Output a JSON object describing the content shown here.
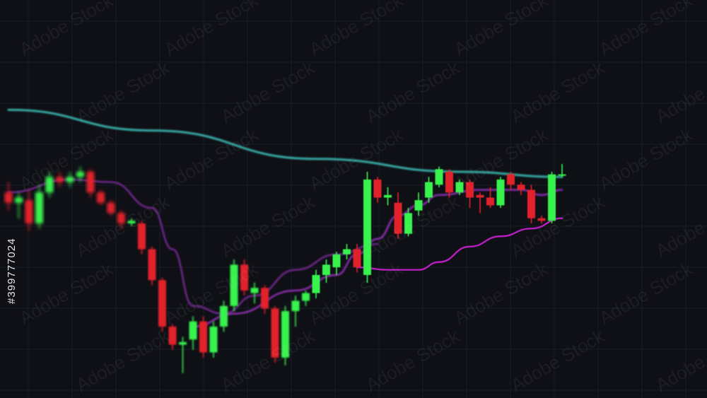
{
  "watermark": {
    "text": "Adobe Stock",
    "id": "#399777024"
  },
  "colors": {
    "background": "#0f1016",
    "bull": "#39f24e",
    "bear": "#e1202a",
    "ma_teal": "#3ab8b0",
    "ma_purple": "#7a2a9a",
    "ma_magenta": "#c020c8"
  },
  "chart_data": {
    "type": "candlestick",
    "title": "",
    "xlabel": "",
    "ylabel": "",
    "grid": true,
    "legend": "none",
    "ylim": [
      0,
      100
    ],
    "candles": [
      {
        "o": 72,
        "h": 76,
        "l": 65,
        "c": 68
      },
      {
        "o": 68,
        "h": 72,
        "l": 62,
        "c": 70
      },
      {
        "o": 69,
        "h": 73,
        "l": 57,
        "c": 60
      },
      {
        "o": 60,
        "h": 75,
        "l": 58,
        "c": 72
      },
      {
        "o": 72,
        "h": 80,
        "l": 70,
        "c": 78
      },
      {
        "o": 78,
        "h": 80,
        "l": 74,
        "c": 76
      },
      {
        "o": 76,
        "h": 80,
        "l": 74,
        "c": 78
      },
      {
        "o": 78,
        "h": 82,
        "l": 76,
        "c": 80
      },
      {
        "o": 80,
        "h": 81,
        "l": 70,
        "c": 72
      },
      {
        "o": 72,
        "h": 73,
        "l": 67,
        "c": 68
      },
      {
        "o": 68,
        "h": 69,
        "l": 63,
        "c": 64
      },
      {
        "o": 64,
        "h": 65,
        "l": 58,
        "c": 60
      },
      {
        "o": 60,
        "h": 62,
        "l": 59,
        "c": 61
      },
      {
        "o": 60,
        "h": 61,
        "l": 48,
        "c": 50
      },
      {
        "o": 50,
        "h": 51,
        "l": 36,
        "c": 38
      },
      {
        "o": 38,
        "h": 39,
        "l": 18,
        "c": 20
      },
      {
        "o": 20,
        "h": 21,
        "l": 11,
        "c": 13
      },
      {
        "o": 13,
        "h": 16,
        "l": 2,
        "c": 14
      },
      {
        "o": 15,
        "h": 24,
        "l": 11,
        "c": 22
      },
      {
        "o": 22,
        "h": 24,
        "l": 8,
        "c": 10
      },
      {
        "o": 10,
        "h": 22,
        "l": 8,
        "c": 20
      },
      {
        "o": 20,
        "h": 30,
        "l": 18,
        "c": 28
      },
      {
        "o": 28,
        "h": 46,
        "l": 26,
        "c": 44
      },
      {
        "o": 44,
        "h": 46,
        "l": 32,
        "c": 34
      },
      {
        "o": 33,
        "h": 37,
        "l": 29,
        "c": 35
      },
      {
        "o": 35,
        "h": 36,
        "l": 25,
        "c": 27
      },
      {
        "o": 27,
        "h": 28,
        "l": 6,
        "c": 8
      },
      {
        "o": 8,
        "h": 28,
        "l": 5,
        "c": 26
      },
      {
        "o": 26,
        "h": 32,
        "l": 20,
        "c": 30
      },
      {
        "o": 30,
        "h": 34,
        "l": 28,
        "c": 33
      },
      {
        "o": 33,
        "h": 42,
        "l": 31,
        "c": 40
      },
      {
        "o": 40,
        "h": 46,
        "l": 37,
        "c": 44
      },
      {
        "o": 43,
        "h": 49,
        "l": 40,
        "c": 48
      },
      {
        "o": 48,
        "h": 52,
        "l": 46,
        "c": 50
      },
      {
        "o": 50,
        "h": 52,
        "l": 41,
        "c": 43
      },
      {
        "o": 40,
        "h": 80,
        "l": 37,
        "c": 77
      },
      {
        "o": 77,
        "h": 78,
        "l": 68,
        "c": 70
      },
      {
        "o": 70,
        "h": 74,
        "l": 67,
        "c": 71
      },
      {
        "o": 68,
        "h": 72,
        "l": 54,
        "c": 56
      },
      {
        "o": 56,
        "h": 66,
        "l": 55,
        "c": 64
      },
      {
        "o": 65,
        "h": 72,
        "l": 63,
        "c": 69
      },
      {
        "o": 70,
        "h": 78,
        "l": 68,
        "c": 76
      },
      {
        "o": 75,
        "h": 82,
        "l": 74,
        "c": 81
      },
      {
        "o": 80,
        "h": 81,
        "l": 70,
        "c": 72
      },
      {
        "o": 72,
        "h": 77,
        "l": 71,
        "c": 76
      },
      {
        "o": 76,
        "h": 77,
        "l": 66,
        "c": 70
      },
      {
        "o": 71,
        "h": 72,
        "l": 64,
        "c": 70
      },
      {
        "o": 70,
        "h": 74,
        "l": 66,
        "c": 67
      },
      {
        "o": 67,
        "h": 78,
        "l": 66,
        "c": 77
      },
      {
        "o": 79,
        "h": 80,
        "l": 73,
        "c": 75
      },
      {
        "o": 75,
        "h": 76,
        "l": 71,
        "c": 73
      },
      {
        "o": 73,
        "h": 75,
        "l": 60,
        "c": 62
      },
      {
        "o": 62,
        "h": 63,
        "l": 60,
        "c": 61
      },
      {
        "o": 61,
        "h": 80,
        "l": 60,
        "c": 79
      },
      {
        "o": 79,
        "h": 83,
        "l": 78,
        "c": 79
      }
    ],
    "moving_averages": [
      {
        "color": "#3ab8b0",
        "values": [
          [
            0,
            104
          ],
          [
            14,
            96
          ],
          [
            30,
            85
          ],
          [
            44,
            80
          ],
          [
            54,
            78
          ]
        ]
      },
      {
        "color": "#7a2a9a",
        "values": [
          [
            0,
            72
          ],
          [
            6,
            77
          ],
          [
            10,
            76
          ],
          [
            14,
            66
          ],
          [
            16,
            50
          ],
          [
            18,
            28
          ],
          [
            21,
            25
          ],
          [
            24,
            32
          ],
          [
            28,
            42
          ],
          [
            32,
            48
          ],
          [
            36,
            52
          ]
        ]
      },
      {
        "color": "#9a30c0",
        "values": [
          [
            18,
            20
          ],
          [
            22,
            25
          ],
          [
            28,
            34
          ],
          [
            32,
            40
          ],
          [
            34,
            48
          ],
          [
            36,
            54
          ],
          [
            38,
            63
          ],
          [
            40,
            67
          ],
          [
            42,
            71
          ],
          [
            46,
            73
          ],
          [
            50,
            73
          ],
          [
            52,
            71
          ],
          [
            54,
            73
          ]
        ]
      },
      {
        "color": "#c020c8",
        "values": [
          [
            34,
            43
          ],
          [
            37,
            42
          ],
          [
            40,
            42
          ],
          [
            42,
            45
          ],
          [
            45,
            51
          ],
          [
            48,
            55
          ],
          [
            51,
            58
          ],
          [
            54,
            62
          ]
        ]
      }
    ]
  }
}
